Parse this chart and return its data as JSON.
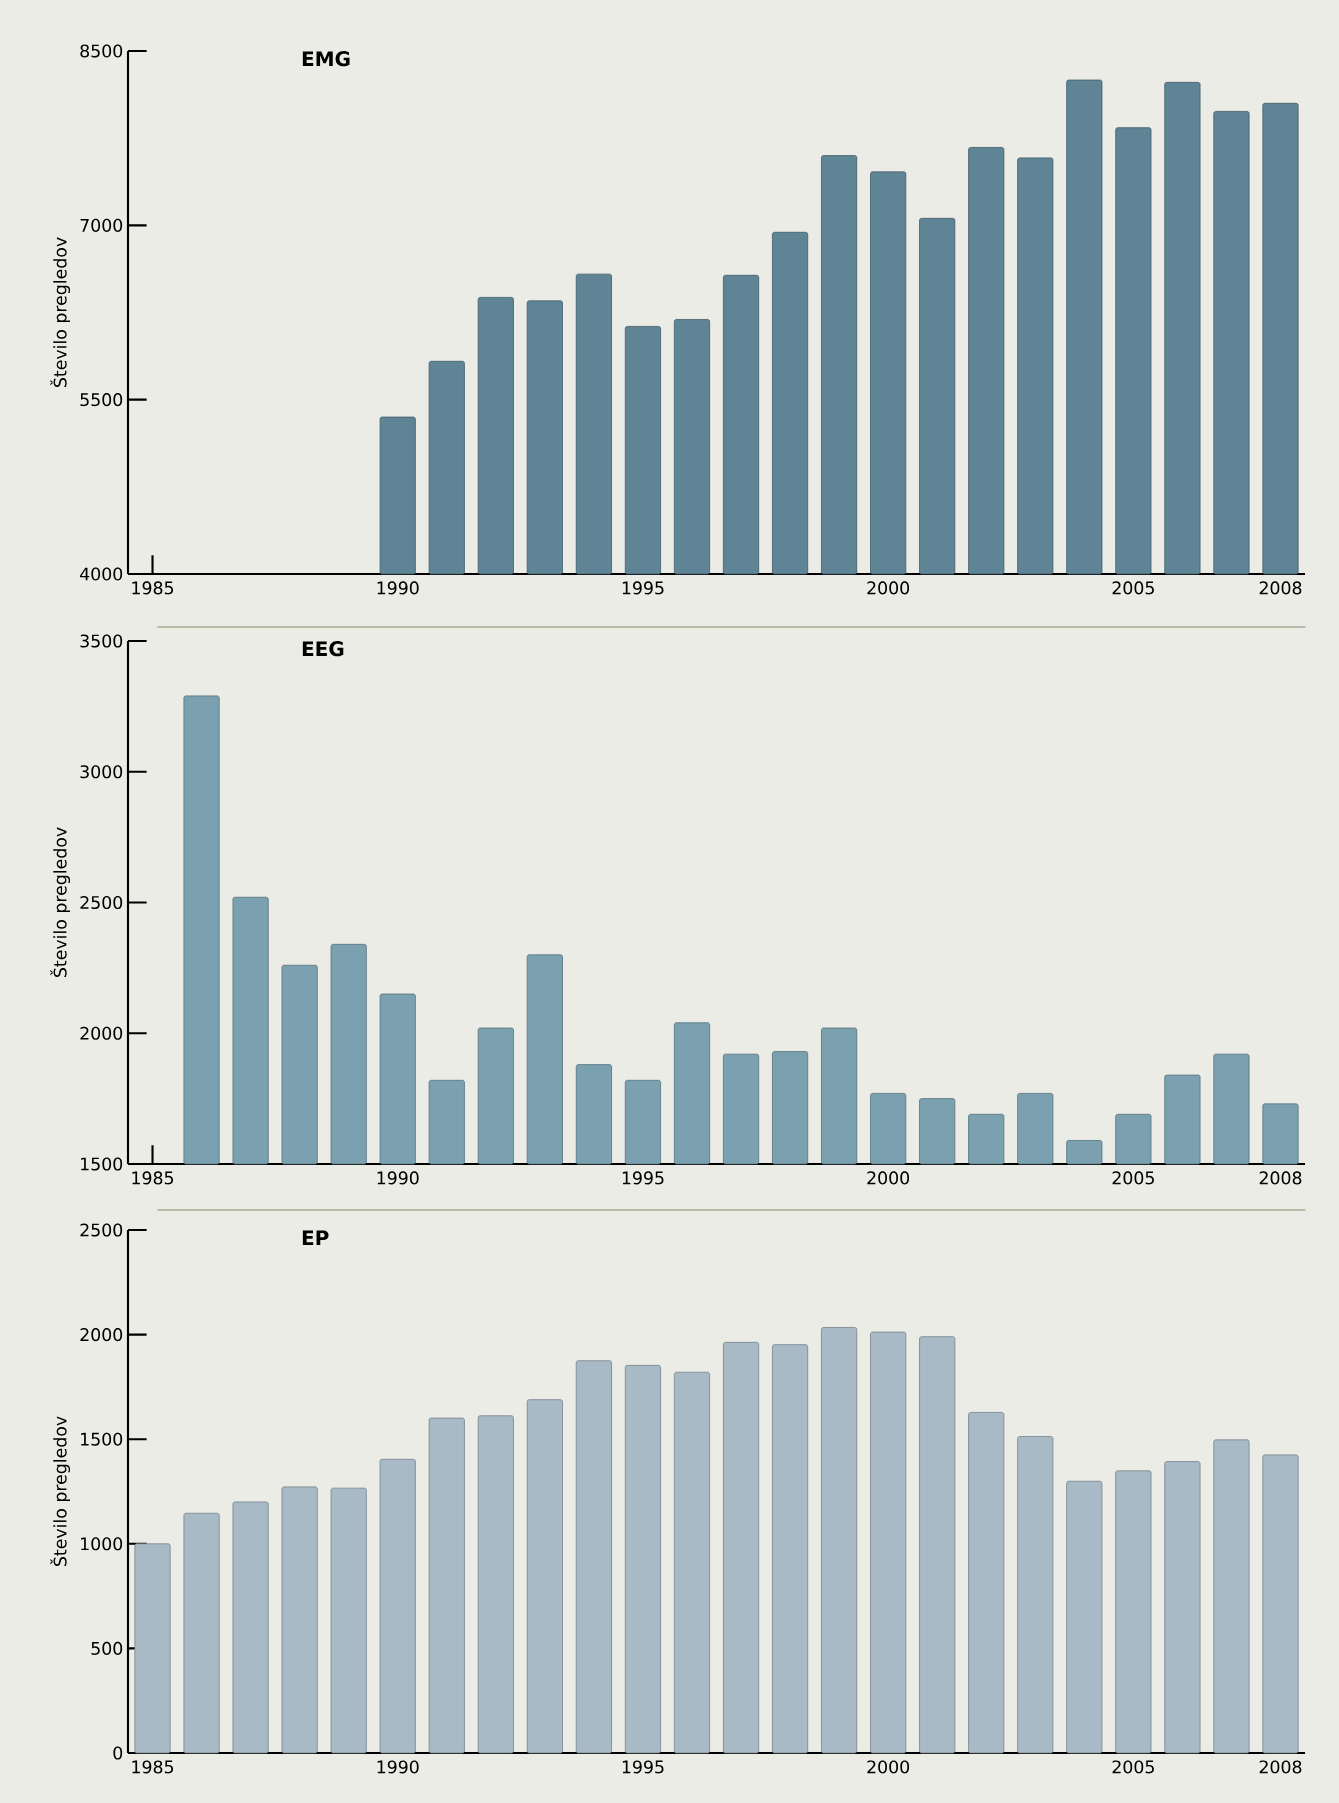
{
  "chart_data": [
    {
      "type": "bar",
      "title": "EMG",
      "ylabel": "Število pregledov",
      "color": "#5f8496",
      "x": [
        1990,
        1991,
        1992,
        1993,
        1994,
        1995,
        1996,
        1997,
        1998,
        1999,
        2000,
        2001,
        2002,
        2003,
        2004,
        2005,
        2006,
        2007,
        2008
      ],
      "values": [
        5350,
        5830,
        6380,
        6350,
        6580,
        6130,
        6190,
        6570,
        6940,
        7600,
        7460,
        7060,
        7670,
        7580,
        8250,
        7840,
        8230,
        7980,
        8050
      ],
      "xlim": [
        1984.5,
        2008.5
      ],
      "xticks": [
        1985,
        1990,
        1995,
        2000,
        2005,
        2008
      ],
      "ylim": [
        4000,
        8500
      ],
      "yticks": [
        4000,
        5500,
        7000,
        8500
      ]
    },
    {
      "type": "bar",
      "title": "EEG",
      "ylabel": "Število pregledov",
      "color": "#7ba1b1",
      "x": [
        1986,
        1987,
        1988,
        1989,
        1990,
        1991,
        1992,
        1993,
        1994,
        1995,
        1996,
        1997,
        1998,
        1999,
        2000,
        2001,
        2002,
        2003,
        2004,
        2005,
        2006,
        2007,
        2008
      ],
      "values": [
        3290,
        2520,
        2260,
        2340,
        2150,
        1820,
        2020,
        2300,
        1880,
        1820,
        2040,
        1920,
        1930,
        2020,
        1770,
        1750,
        1690,
        1770,
        1590,
        1690,
        1840,
        1920,
        1730
      ],
      "xlim": [
        1984.5,
        2008.5
      ],
      "xticks": [
        1985,
        1990,
        1995,
        2000,
        2005,
        2008
      ],
      "ylim": [
        1500,
        3500
      ],
      "yticks": [
        1500,
        2000,
        2500,
        3000,
        3500
      ]
    },
    {
      "type": "bar",
      "title": "EP",
      "ylabel": "Število pregledov",
      "color": "#a8bac6",
      "x": [
        1985,
        1986,
        1987,
        1988,
        1989,
        1990,
        1991,
        1992,
        1993,
        1994,
        1995,
        1996,
        1997,
        1998,
        1999,
        2000,
        2001,
        2002,
        2003,
        2004,
        2005,
        2006,
        2007,
        2008
      ],
      "values": [
        1000,
        1146,
        1200,
        1272,
        1266,
        1404,
        1601,
        1612,
        1689,
        1875,
        1853,
        1820,
        1963,
        1952,
        2034,
        2012,
        1990,
        1628,
        1513,
        1299,
        1349,
        1393,
        1497,
        1425
      ],
      "xlim": [
        1984.5,
        2008.5
      ],
      "xticks": [
        1985,
        1990,
        1995,
        2000,
        2005,
        2008
      ],
      "ylim": [
        0,
        2500
      ],
      "yticks": [
        0,
        500,
        1000,
        1500,
        2000,
        2500
      ]
    }
  ]
}
